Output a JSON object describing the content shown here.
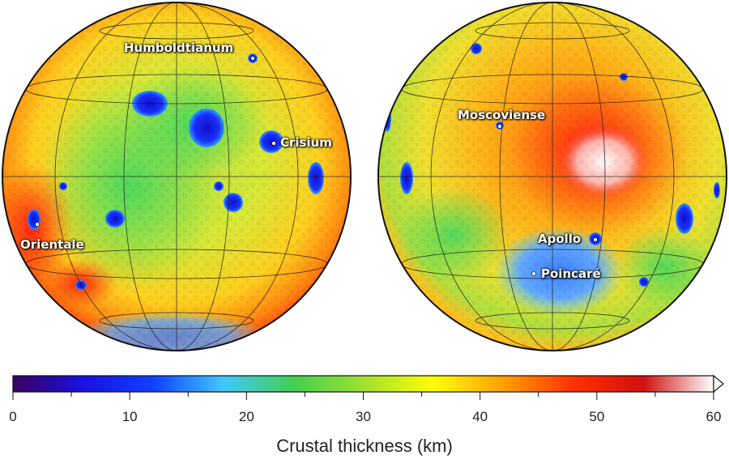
{
  "labels": {
    "humboldtianum": "Humboldtianum",
    "crisium": "Crisium",
    "orientale": "Orientale",
    "moscoviense": "Moscoviense",
    "apollo": "Apollo",
    "poincare": "Poincaré"
  },
  "colorbar": {
    "title": "Crustal thickness (km)",
    "ticks": [
      "0",
      "10",
      "20",
      "30",
      "40",
      "50",
      "60"
    ],
    "min": 0,
    "max": 60,
    "colors": [
      "#3a0060",
      "#1a10e0",
      "#1040ff",
      "#40c8ff",
      "#40d050",
      "#a0e030",
      "#ffff00",
      "#ffa000",
      "#ff3000",
      "#d01010",
      "#ffffff"
    ]
  },
  "colors": {
    "background": "#f0b030",
    "thin_crust": "#1a1acc",
    "thick_crust": "#ff2000"
  }
}
